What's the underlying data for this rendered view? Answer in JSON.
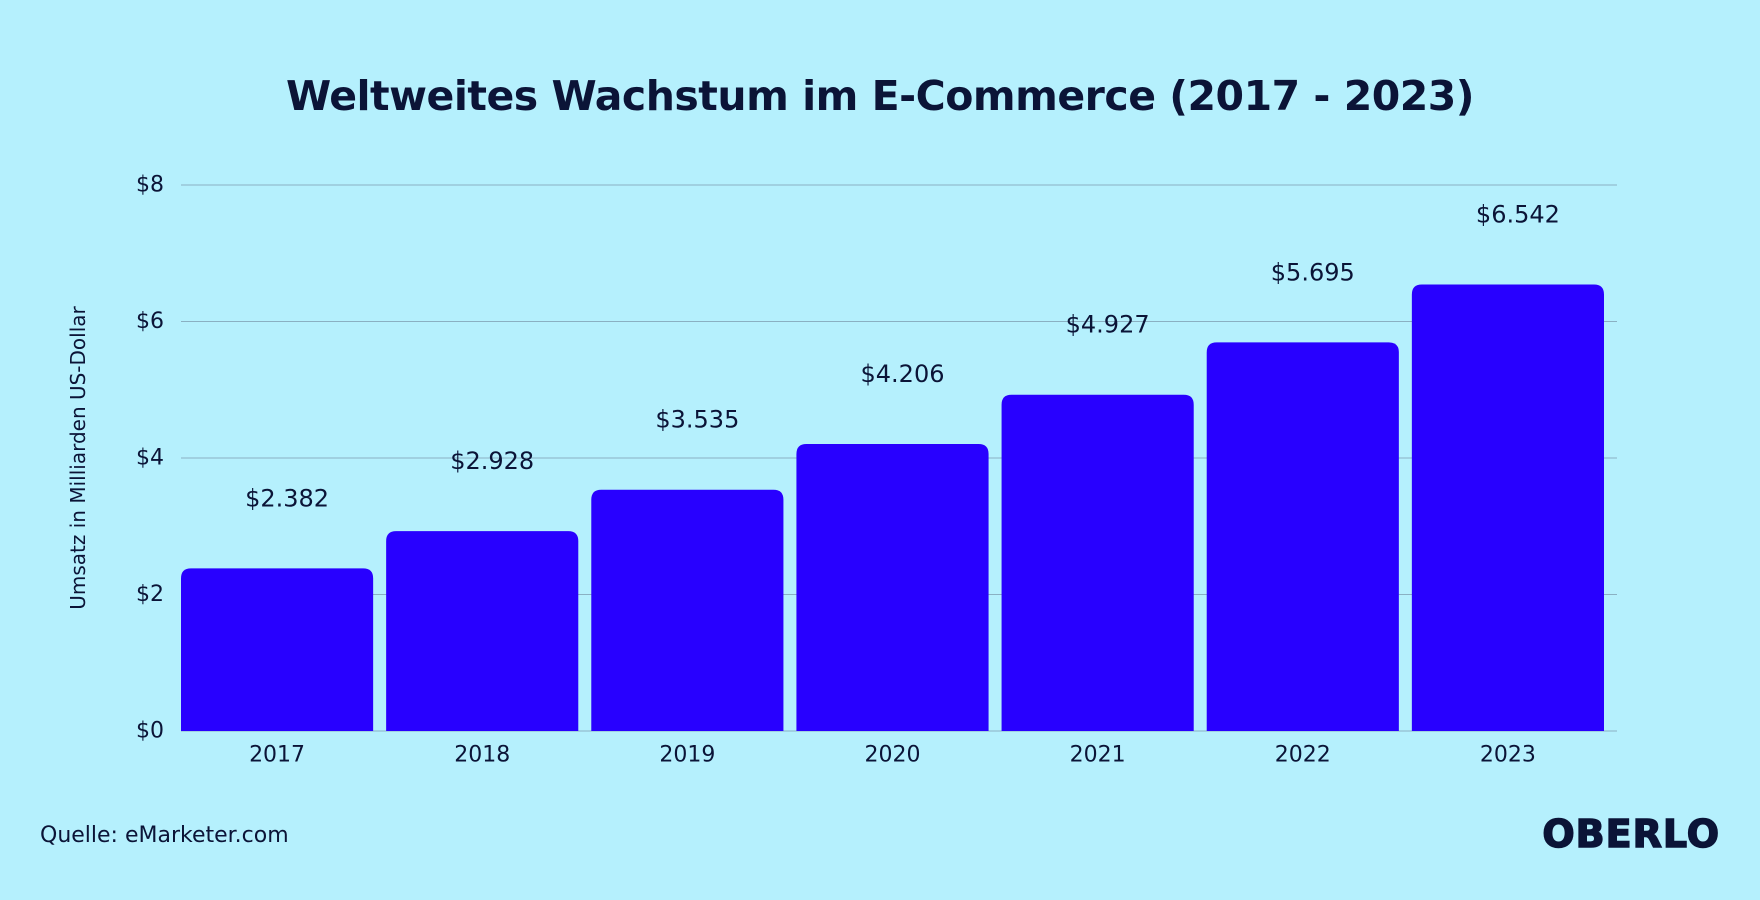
{
  "colors": {
    "background": "#b5f0fd",
    "text": "#0b1437",
    "bar": "#2800ff",
    "grid": "#8ab0c2"
  },
  "source": "Quelle: eMarketer.com",
  "brand": "OBERLO",
  "chart_data": {
    "type": "bar",
    "title": "Weltweites Wachstum im E-Commerce (2017 - 2023)",
    "xlabel": "",
    "ylabel": "Umsatz in Milliarden US-Dollar",
    "categories": [
      "2017",
      "2018",
      "2019",
      "2020",
      "2021",
      "2022",
      "2023"
    ],
    "values": [
      2.382,
      2.928,
      3.535,
      4.206,
      4.927,
      5.695,
      6.542
    ],
    "data_labels": [
      "$2.382",
      "$2.928",
      "$3.535",
      "$4.206",
      "$4.927",
      "$5.695",
      "$6.542"
    ],
    "ylim": [
      0,
      8
    ],
    "yticks": [
      0,
      2,
      4,
      6,
      8
    ],
    "ytick_labels": [
      "$0",
      "$2",
      "$4",
      "$6",
      "$8"
    ],
    "grid": true,
    "legend": "none"
  }
}
